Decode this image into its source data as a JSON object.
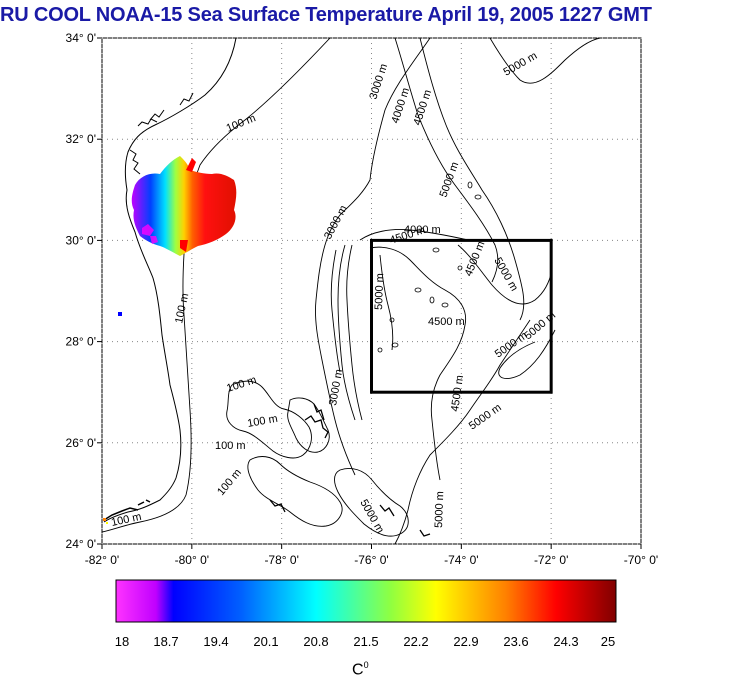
{
  "title": "RU COOL  NOAA-15 Sea Surface Temperature April 19, 2005 1227 GMT",
  "map": {
    "lat_labels": [
      "34° 0'",
      "32° 0'",
      "30° 0'",
      "28° 0'",
      "26° 0'",
      "24° 0'"
    ],
    "lon_labels": [
      "-82° 0'",
      "-80° 0'",
      "-78° 0'",
      "-76° 0'",
      "-74° 0'",
      "-72° 0'",
      "-70° 0'"
    ],
    "lat_range": [
      24,
      34
    ],
    "lon_range": [
      -82,
      -70
    ],
    "grid": "dotted",
    "study_box": {
      "lon": [
        -76,
        -72
      ],
      "lat": [
        27,
        30
      ]
    },
    "contour_labels": [
      "100 m",
      "100 m",
      "100 m",
      "100 m",
      "100 m",
      "100 m",
      "100 m",
      "3000 m",
      "3000 m",
      "3000 m",
      "4000 m",
      "4000 m",
      "4500 m",
      "4500 m",
      "4500 m",
      "4500 m",
      "4500 m",
      "5000 m",
      "5000 m",
      "5000 m",
      "5000 m",
      "5000 m",
      "5000 m",
      "5000 m",
      "5000 m",
      "5000 m"
    ]
  },
  "colorbar": {
    "ticks": [
      "18",
      "18.7",
      "19.4",
      "20.1",
      "20.8",
      "21.5",
      "22.2",
      "22.9",
      "23.6",
      "24.3",
      "25"
    ],
    "range": [
      18,
      25
    ],
    "unit_base": "C",
    "unit_sup": "0",
    "colors": [
      "#ff00ff",
      "#9000ff",
      "#0000ff",
      "#0080ff",
      "#00ffff",
      "#00ff80",
      "#ffff00",
      "#ff8000",
      "#ff0000",
      "#800000"
    ]
  }
}
